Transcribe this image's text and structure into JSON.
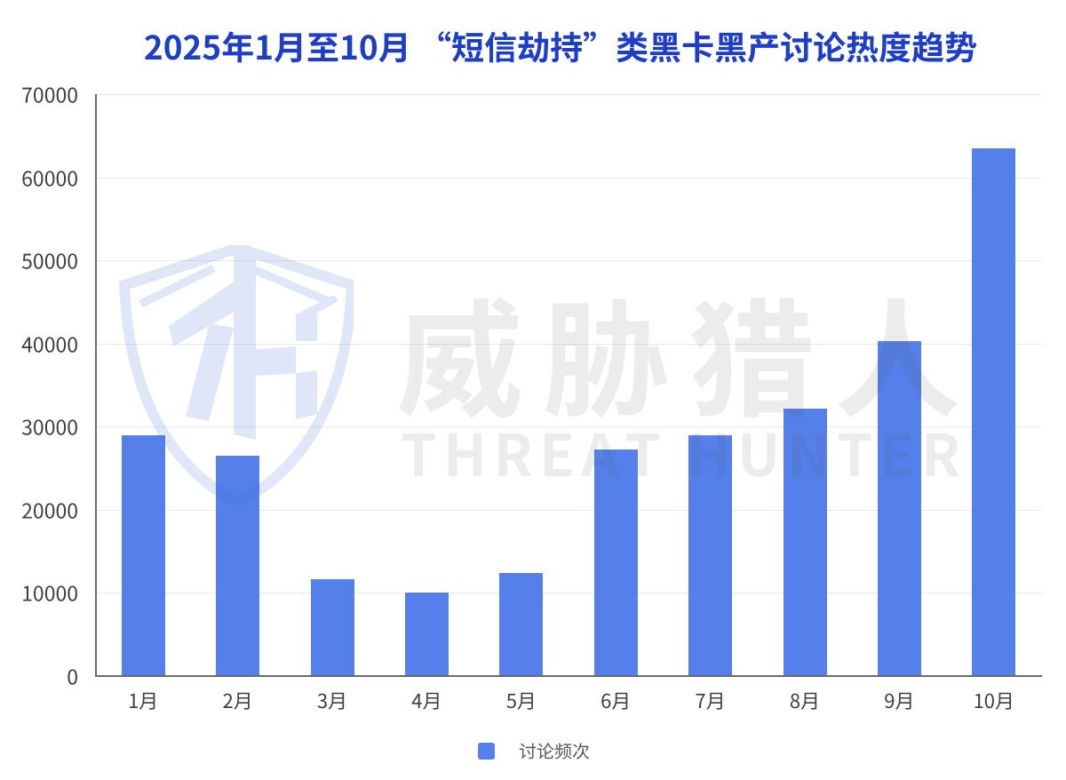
{
  "title": {
    "text": "2025年1月至10月 “短信劫持”类黑卡黑产讨论热度趋势",
    "color": "#1e3ec9"
  },
  "chart_data": {
    "type": "bar",
    "title": "2025年1月至10月 “短信劫持”类黑卡黑产讨论热度趋势",
    "categories": [
      "1月",
      "2月",
      "3月",
      "4月",
      "5月",
      "6月",
      "7月",
      "8月",
      "9月",
      "10月"
    ],
    "series": [
      {
        "name": "讨论频次",
        "values": [
          29000,
          26500,
          11700,
          10100,
          12400,
          27300,
          29000,
          32200,
          40300,
          63500
        ],
        "color": "#5580EB"
      }
    ],
    "xlabel": "",
    "ylabel": "",
    "ylim": [
      0,
      70000
    ],
    "y_ticks": [
      0,
      10000,
      20000,
      30000,
      40000,
      50000,
      60000,
      70000
    ],
    "grid": true,
    "legend_position": "bottom"
  },
  "legend": {
    "items": [
      {
        "label": "讨论频次",
        "swatch_color": "#5580EB"
      }
    ]
  },
  "watermark": {
    "monogram": "TH",
    "brand_cn": "威胁猎人",
    "brand_en": "THREAT HUNTER"
  },
  "colors": {
    "bar": "#5580EB",
    "title": "#1e3ec9",
    "axis_line": "#6a6a6a",
    "gridline": "#e9e9e9",
    "tick_label": "#3f3f3f",
    "legend_text": "#58595b",
    "background": "#ffffff"
  }
}
